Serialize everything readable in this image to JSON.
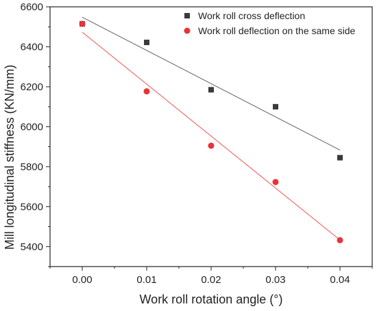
{
  "chart_data": {
    "type": "scatter",
    "title": "",
    "xlabel": "Work roll rotation angle (°)",
    "ylabel": "Mill longitudinal stiffness (KN/mm)",
    "xlim": [
      -0.005,
      0.045
    ],
    "ylim": [
      5300,
      6600
    ],
    "x_ticks": [
      "0.00",
      "0.01",
      "0.02",
      "0.03",
      "0.04"
    ],
    "y_ticks": [
      "5400",
      "5600",
      "5800",
      "6000",
      "6200",
      "6400",
      "6600"
    ],
    "grid": false,
    "legend_position": "top-right",
    "series": [
      {
        "name": "Work roll cross deflection",
        "marker": "square",
        "color": "#3a3a3a",
        "fit_color": "#606060",
        "x": [
          0.0,
          0.01,
          0.02,
          0.03,
          0.04
        ],
        "y": [
          6515,
          6422,
          6185,
          6100,
          5845
        ],
        "fit": {
          "x": [
            0.0,
            0.04
          ],
          "y": [
            6548,
            5883
          ]
        }
      },
      {
        "name": "Work roll deflection on the same side",
        "marker": "circle",
        "color": "#e8333a",
        "fit_color": "#f05050",
        "x": [
          0.0,
          0.01,
          0.02,
          0.03,
          0.04
        ],
        "y": [
          6515,
          6177,
          5905,
          5723,
          5432
        ],
        "fit": {
          "x": [
            0.0,
            0.04
          ],
          "y": [
            6473,
            5433
          ]
        }
      }
    ]
  }
}
